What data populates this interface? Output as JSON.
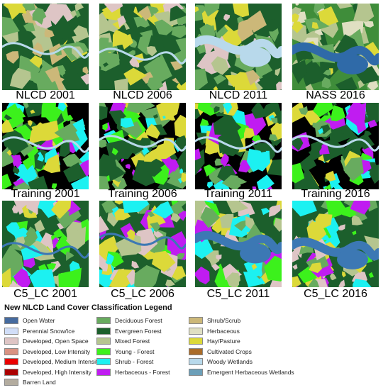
{
  "panels": [
    {
      "caption": "NLCD 2001",
      "style": "nlcd"
    },
    {
      "caption": "NLCD 2006",
      "style": "nlcd"
    },
    {
      "caption": "NLCD 2011",
      "style": "nlcd"
    },
    {
      "caption": "NASS 2016",
      "style": "nass"
    },
    {
      "caption": "Training 2001",
      "style": "training"
    },
    {
      "caption": "Training 2006",
      "style": "training"
    },
    {
      "caption": "Training 2011",
      "style": "training"
    },
    {
      "caption": "Training 2016",
      "style": "training"
    },
    {
      "caption": "C5_LC 2001",
      "style": "c5"
    },
    {
      "caption": "C5_LC 2006",
      "style": "c5"
    },
    {
      "caption": "C5_LC 2011",
      "style": "c5"
    },
    {
      "caption": "C5_LC 2016",
      "style": "c5"
    }
  ],
  "legend": {
    "title": "New NLCD Land Cover Classification Legend",
    "columns": [
      [
        {
          "label": "Open Water",
          "color": "#466b9f"
        },
        {
          "label": "Perennial Snow/Ice",
          "color": "#d1def8"
        },
        {
          "label": "Developed, Open Space",
          "color": "#dec5c5"
        },
        {
          "label": "Developed, Low Intensity",
          "color": "#d99282"
        },
        {
          "label": "Developed, Medium Intensity",
          "color": "#eb0000"
        },
        {
          "label": "Developed, High Intensity",
          "color": "#ab0000"
        },
        {
          "label": "Barren Land",
          "color": "#b3ac9f"
        }
      ],
      [
        {
          "label": "Deciduous Forest",
          "color": "#68ab5f"
        },
        {
          "label": "Evergreen Forest",
          "color": "#1c5f2c"
        },
        {
          "label": "Mixed Forest",
          "color": "#b5c58f"
        },
        {
          "label": "Young - Forest",
          "color": "#3cf11c"
        },
        {
          "label": "Shrub - Forest",
          "color": "#1cf1f1"
        },
        {
          "label": "Herbaceous - Forest",
          "color": "#c01cf1"
        }
      ],
      [
        {
          "label": "Shrub/Scrub",
          "color": "#ccb879"
        },
        {
          "label": "Herbaceous",
          "color": "#dfdfc2"
        },
        {
          "label": "Hay/Pasture",
          "color": "#dcd939"
        },
        {
          "label": "Cultivated Crops",
          "color": "#ab6c28"
        },
        {
          "label": "Woody Wetlands",
          "color": "#b8d9eb"
        },
        {
          "label": "Emergent Herbaceous Wetlands",
          "color": "#6c9fb8"
        }
      ]
    ]
  }
}
